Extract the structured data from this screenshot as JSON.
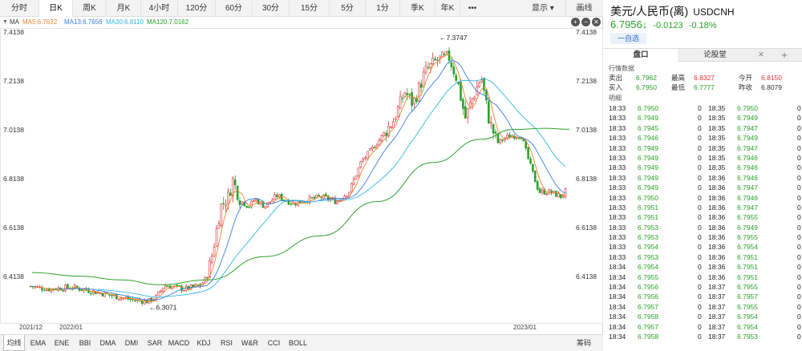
{
  "toolbar": {
    "timeframes": [
      {
        "label": "分时",
        "active": false
      },
      {
        "label": "日K",
        "active": true
      },
      {
        "label": "周K",
        "active": false
      },
      {
        "label": "月K",
        "active": false
      },
      {
        "label": "4小时",
        "active": false
      },
      {
        "label": "120分",
        "active": false
      },
      {
        "label": "60分",
        "active": false
      },
      {
        "label": "30分",
        "active": false
      },
      {
        "label": "15分",
        "active": false
      },
      {
        "label": "5分",
        "active": false
      },
      {
        "label": "1分",
        "active": false
      },
      {
        "label": "季K",
        "active": false
      },
      {
        "label": "年K",
        "active": false
      }
    ],
    "more": "•••",
    "display_label": "显示",
    "draw_label": "画线"
  },
  "ma_legend": {
    "label": "MA",
    "items": [
      {
        "text": "MA5:6.7632",
        "color": "#e8842c"
      },
      {
        "text": "MA13:6.7656",
        "color": "#3a7de0"
      },
      {
        "text": "MA30:6.8110",
        "color": "#33b5e5"
      },
      {
        "text": "MA120:7.0162",
        "color": "#2ca02c"
      }
    ]
  },
  "chart_data": {
    "type": "candlestick",
    "instrument": "USDCNH",
    "y_ticks": [
      "7.4138",
      "7.2138",
      "7.0138",
      "6.8138",
      "6.6138",
      "6.4138"
    ],
    "ylim": [
      6.2738,
      7.4348
    ],
    "x_ticks": [
      "2021/12",
      "2022/01",
      "2023/01"
    ],
    "annotations": [
      {
        "text": "←7.3747",
        "value": 7.3747
      },
      {
        "text": "←6.3071",
        "value": 6.3071
      }
    ],
    "colors": {
      "up": "#e0303a",
      "down": "#2ca02c",
      "ma5": "#e8842c",
      "ma13": "#3a7de0",
      "ma30": "#33b5e5",
      "ma120": "#2ca02c"
    },
    "anchors": [
      [
        0,
        6.38
      ],
      [
        30,
        6.378
      ],
      [
        60,
        6.362
      ],
      [
        90,
        6.37
      ],
      [
        120,
        6.35
      ],
      [
        140,
        6.335
      ],
      [
        165,
        6.318
      ],
      [
        185,
        6.312
      ],
      [
        195,
        6.33
      ],
      [
        205,
        6.378
      ],
      [
        230,
        6.362
      ],
      [
        250,
        6.378
      ],
      [
        258,
        6.412
      ],
      [
        265,
        6.51
      ],
      [
        275,
        6.7
      ],
      [
        285,
        6.74
      ],
      [
        290,
        6.81
      ],
      [
        300,
        6.725
      ],
      [
        310,
        6.7
      ],
      [
        318,
        6.73
      ],
      [
        330,
        6.7
      ],
      [
        345,
        6.745
      ],
      [
        365,
        6.712
      ],
      [
        380,
        6.725
      ],
      [
        400,
        6.74
      ],
      [
        420,
        6.72
      ],
      [
        435,
        6.76
      ],
      [
        450,
        6.88
      ],
      [
        470,
        6.96
      ],
      [
        490,
        7.05
      ],
      [
        505,
        7.17
      ],
      [
        515,
        7.12
      ],
      [
        530,
        7.25
      ],
      [
        545,
        7.3
      ],
      [
        560,
        7.31
      ],
      [
        570,
        7.22
      ],
      [
        580,
        7.06
      ],
      [
        590,
        7.15
      ],
      [
        600,
        7.23
      ],
      [
        610,
        7.05
      ],
      [
        620,
        6.96
      ],
      [
        635,
        6.99
      ],
      [
        650,
        6.99
      ],
      [
        660,
        6.88
      ],
      [
        672,
        6.76
      ],
      [
        685,
        6.76
      ],
      [
        700,
        6.74
      ],
      [
        707,
        6.77
      ]
    ],
    "ma120_points": [
      [
        40,
        6.43
      ],
      [
        100,
        6.415
      ],
      [
        150,
        6.4
      ],
      [
        200,
        6.38
      ],
      [
        260,
        6.4
      ],
      [
        330,
        6.495
      ],
      [
        400,
        6.58
      ],
      [
        470,
        6.72
      ],
      [
        540,
        6.88
      ],
      [
        600,
        6.975
      ],
      [
        640,
        7.015
      ],
      [
        680,
        7.02
      ],
      [
        710,
        7.016
      ]
    ]
  },
  "bottom_bar": {
    "indicators": [
      {
        "label": "均线",
        "active": true
      },
      {
        "label": "EMA",
        "active": false
      },
      {
        "label": "ENE",
        "active": false
      },
      {
        "label": "BBI",
        "active": false
      },
      {
        "label": "DMA",
        "active": false
      },
      {
        "label": "DMI",
        "active": false
      },
      {
        "label": "SAR",
        "active": false
      },
      {
        "label": "MACD",
        "active": false
      },
      {
        "label": "KDJ",
        "active": false
      },
      {
        "label": "RSI",
        "active": false
      },
      {
        "label": "W&R",
        "active": false
      },
      {
        "label": "CCI",
        "active": false
      },
      {
        "label": "BOLL",
        "active": false
      }
    ],
    "chips_label": "筹码"
  },
  "side": {
    "title": "美元/人民币(离)",
    "code": "USDCNH",
    "price": "6.7956↓",
    "change": "-0.0123",
    "change_pct": "-0.18%",
    "add_watch": "一自选",
    "tabs": [
      "盘口",
      "论股堂"
    ],
    "section_quote": "行情数据",
    "quote_rows": [
      {
        "l1": "卖出",
        "v1": "6.7962",
        "l2": "最高",
        "v2": "6.8327",
        "l3": "今开",
        "v3": "6.8150"
      },
      {
        "l1": "买入",
        "v1": "6.7950",
        "l2": "最低",
        "v2": "6.7777",
        "l3": "昨收",
        "v3": "6.8079"
      }
    ],
    "section_ticks": "明细",
    "ticks_left": [
      [
        "18:33",
        "6.7950",
        "0"
      ],
      [
        "18:33",
        "6.7949",
        "0"
      ],
      [
        "18:33",
        "6.7945",
        "0"
      ],
      [
        "18:33",
        "6.7946",
        "0"
      ],
      [
        "18:33",
        "6.7949",
        "0"
      ],
      [
        "18:33",
        "6.7949",
        "0"
      ],
      [
        "18:33",
        "6.7949",
        "0"
      ],
      [
        "18:33",
        "6.7949",
        "0"
      ],
      [
        "18:33",
        "6.7949",
        "0"
      ],
      [
        "18:33",
        "6.7950",
        "0"
      ],
      [
        "18:33",
        "6.7951",
        "0"
      ],
      [
        "18:33",
        "6.7951",
        "0"
      ],
      [
        "18:33",
        "6.7953",
        "0"
      ],
      [
        "18:33",
        "6.7953",
        "0"
      ],
      [
        "18:33",
        "6.7954",
        "0"
      ],
      [
        "18:33",
        "6.7953",
        "0"
      ],
      [
        "18:34",
        "6.7954",
        "0"
      ],
      [
        "18:34",
        "6.7955",
        "0"
      ],
      [
        "18:34",
        "6.7956",
        "0"
      ],
      [
        "18:34",
        "6.7956",
        "0"
      ],
      [
        "18:34",
        "6.7957",
        "0"
      ],
      [
        "18:34",
        "6.7958",
        "0"
      ],
      [
        "18:34",
        "6.7957",
        "0"
      ],
      [
        "18:34",
        "6.7958",
        "0"
      ]
    ],
    "ticks_right": [
      [
        "18:35",
        "6.7950",
        "0"
      ],
      [
        "18:35",
        "6.7949",
        "0"
      ],
      [
        "18:35",
        "6.7947",
        "0"
      ],
      [
        "18:35",
        "6.7949",
        "0"
      ],
      [
        "18:35",
        "6.7947",
        "0"
      ],
      [
        "18:35",
        "6.7946",
        "0"
      ],
      [
        "18:35",
        "6.7946",
        "0"
      ],
      [
        "18:36",
        "6.7946",
        "0"
      ],
      [
        "18:36",
        "6.7947",
        "0"
      ],
      [
        "18:36",
        "6.7946",
        "0"
      ],
      [
        "18:36",
        "6.7947",
        "0"
      ],
      [
        "18:36",
        "6.7955",
        "0"
      ],
      [
        "18:36",
        "6.7949",
        "0"
      ],
      [
        "18:36",
        "6.7955",
        "0"
      ],
      [
        "18:36",
        "6.7954",
        "0"
      ],
      [
        "18:36",
        "6.7951",
        "0"
      ],
      [
        "18:36",
        "6.7951",
        "0"
      ],
      [
        "18:36",
        "6.7951",
        "0"
      ],
      [
        "18:37",
        "6.7955",
        "0"
      ],
      [
        "18:37",
        "6.7957",
        "0"
      ],
      [
        "18:37",
        "6.7955",
        "0"
      ],
      [
        "18:37",
        "6.7954",
        "0"
      ],
      [
        "18:37",
        "6.7954",
        "0"
      ],
      [
        "18:37",
        "6.7953",
        "0"
      ]
    ]
  }
}
